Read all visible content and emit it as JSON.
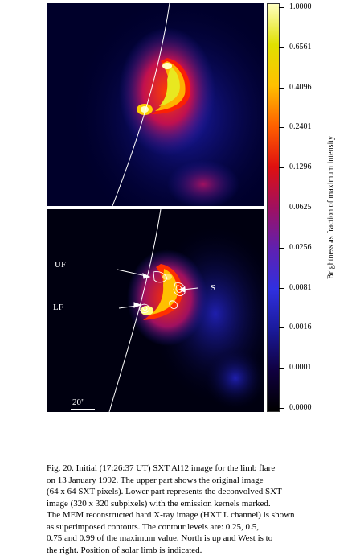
{
  "colorbar": {
    "ticks": [
      "1.0000",
      "0.6561",
      "0.4096",
      "0.2401",
      "0.1296",
      "0.0625",
      "0.0256",
      "0.0081",
      "0.0016",
      "0.0001",
      "0.0000"
    ],
    "axis_label": "Brightness as fraction of maximum intensity",
    "colors": [
      "#000000",
      "#100040",
      "#1a1a9a",
      "#3030e0",
      "#6020b0",
      "#a01060",
      "#e01010",
      "#ff6000",
      "#ffc000",
      "#e0e000",
      "#ffffc0"
    ]
  },
  "annotations": {
    "uf": "UF",
    "lf": "LF",
    "s": "S",
    "scale": "20\""
  },
  "caption": {
    "lines": [
      "Fig. 20. Initial (17:26:37 UT) SXT Al12 image for the limb flare",
      "on 13 January 1992. The upper part shows the original image",
      "(64 x 64 SXT pixels). Lower part represents the deconvolved SXT",
      "image (320 x 320 subpixels) with the emission kernels marked.",
      "The MEM reconstructed hard X-ray image (HXT L channel) is shown",
      "as superimposed contours. The contour levels are: 0.25, 0.5,",
      "0.75 and 0.99 of the maximum value. North is up and West is to",
      "the right. Position of solar limb is indicated."
    ]
  }
}
